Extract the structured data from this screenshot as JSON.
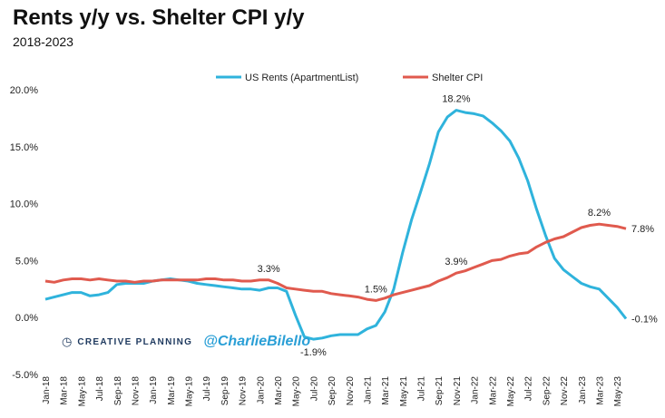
{
  "chart_data": {
    "type": "line",
    "title": "Rents y/y vs. Shelter CPI y/y",
    "subtitle": "2018-2023",
    "xlabel": "",
    "ylabel": "",
    "ylim": [
      -5,
      20
    ],
    "yticks": [
      "20.0%",
      "15.0%",
      "10.0%",
      "5.0%",
      "0.0%",
      "-5.0%"
    ],
    "ytick_values": [
      20,
      15,
      10,
      5,
      0,
      -5
    ],
    "x": [
      "2018-01",
      "2018-02",
      "2018-03",
      "2018-04",
      "2018-05",
      "2018-06",
      "2018-07",
      "2018-08",
      "2018-09",
      "2018-10",
      "2018-11",
      "2018-12",
      "2019-01",
      "2019-02",
      "2019-03",
      "2019-04",
      "2019-05",
      "2019-06",
      "2019-07",
      "2019-08",
      "2019-09",
      "2019-10",
      "2019-11",
      "2019-12",
      "2020-01",
      "2020-02",
      "2020-03",
      "2020-04",
      "2020-05",
      "2020-06",
      "2020-07",
      "2020-08",
      "2020-09",
      "2020-10",
      "2020-11",
      "2020-12",
      "2021-01",
      "2021-02",
      "2021-03",
      "2021-04",
      "2021-05",
      "2021-06",
      "2021-07",
      "2021-08",
      "2021-09",
      "2021-10",
      "2021-11",
      "2021-12",
      "2022-01",
      "2022-02",
      "2022-03",
      "2022-04",
      "2022-05",
      "2022-06",
      "2022-07",
      "2022-08",
      "2022-09",
      "2022-10",
      "2022-11",
      "2022-12",
      "2023-01",
      "2023-02",
      "2023-03",
      "2023-04",
      "2023-05",
      "2023-06"
    ],
    "xtick_labels": [
      "Jan-18",
      "Mar-18",
      "May-18",
      "Jul-18",
      "Sep-18",
      "Nov-18",
      "Jan-19",
      "Mar-19",
      "May-19",
      "Jul-19",
      "Sep-19",
      "Nov-19",
      "Jan-20",
      "Mar-20",
      "May-20",
      "Jul-20",
      "Sep-20",
      "Nov-20",
      "Jan-21",
      "Mar-21",
      "May-21",
      "Jul-21",
      "Sep-21",
      "Nov-21",
      "Jan-22",
      "Mar-22",
      "May-22",
      "Jul-22",
      "Sep-22",
      "Nov-22",
      "Jan-23",
      "Mar-23",
      "May-23"
    ],
    "legend_position": "top",
    "grid": false,
    "series": [
      {
        "name": "US Rents (ApartmentList)",
        "color": "#2fb3dc",
        "values": [
          1.6,
          1.8,
          2.0,
          2.2,
          2.2,
          1.9,
          2.0,
          2.2,
          2.9,
          3.0,
          3.0,
          3.0,
          3.2,
          3.3,
          3.4,
          3.3,
          3.2,
          3.0,
          2.9,
          2.8,
          2.7,
          2.6,
          2.5,
          2.5,
          2.4,
          2.6,
          2.6,
          2.3,
          0.2,
          -1.7,
          -1.9,
          -1.8,
          -1.6,
          -1.5,
          -1.5,
          -1.5,
          -1.0,
          -0.7,
          0.5,
          2.5,
          5.7,
          8.6,
          11.0,
          13.5,
          16.3,
          17.6,
          18.2,
          18.0,
          17.9,
          17.7,
          17.1,
          16.4,
          15.5,
          14.0,
          12.0,
          9.5,
          7.2,
          5.2,
          4.2,
          3.6,
          3.0,
          2.7,
          2.5,
          1.7,
          0.9,
          -0.1
        ]
      },
      {
        "name": "Shelter CPI",
        "color": "#e05a4e",
        "values": [
          3.2,
          3.1,
          3.3,
          3.4,
          3.4,
          3.3,
          3.4,
          3.3,
          3.2,
          3.2,
          3.1,
          3.2,
          3.2,
          3.3,
          3.3,
          3.3,
          3.3,
          3.3,
          3.4,
          3.4,
          3.3,
          3.3,
          3.2,
          3.2,
          3.3,
          3.3,
          3.0,
          2.6,
          2.5,
          2.4,
          2.3,
          2.3,
          2.1,
          2.0,
          1.9,
          1.8,
          1.6,
          1.5,
          1.7,
          2.0,
          2.2,
          2.4,
          2.6,
          2.8,
          3.2,
          3.5,
          3.9,
          4.1,
          4.4,
          4.7,
          5.0,
          5.1,
          5.4,
          5.6,
          5.7,
          6.2,
          6.6,
          6.9,
          7.1,
          7.5,
          7.9,
          8.1,
          8.2,
          8.1,
          8.0,
          7.8
        ]
      }
    ],
    "annotations": [
      {
        "series": 0,
        "index": 46,
        "text": "18.2%",
        "pos": "above"
      },
      {
        "series": 0,
        "index": 30,
        "text": "-1.9%",
        "pos": "below"
      },
      {
        "series": 0,
        "index": 65,
        "text": "-0.1%",
        "pos": "right"
      },
      {
        "series": 1,
        "index": 25,
        "text": "3.3%",
        "pos": "above"
      },
      {
        "series": 1,
        "index": 37,
        "text": "1.5%",
        "pos": "above"
      },
      {
        "series": 1,
        "index": 46,
        "text": "3.9%",
        "pos": "above"
      },
      {
        "series": 1,
        "index": 62,
        "text": "8.2%",
        "pos": "above"
      },
      {
        "series": 1,
        "index": 65,
        "text": "7.8%",
        "pos": "right"
      }
    ]
  },
  "branding": {
    "name": "CREATIVE PLANNING",
    "handle": "@CharlieBilello",
    "logo_icon": "creative-planning-logo-icon"
  }
}
